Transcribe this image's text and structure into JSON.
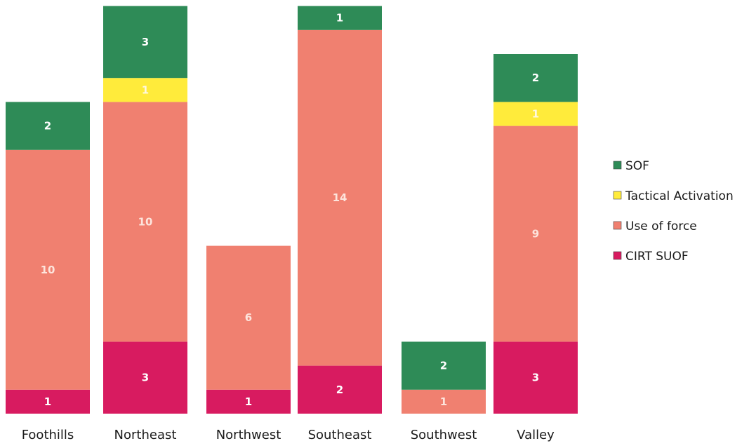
{
  "chart_data": {
    "type": "bar",
    "stacked": true,
    "title": "",
    "xlabel": "",
    "ylabel": "",
    "categories": [
      "Foothills",
      "Northeast",
      "Northwest",
      "Southeast",
      "Southwest",
      "Valley"
    ],
    "series": [
      {
        "name": "CIRT SUOF",
        "values": [
          1,
          3,
          1,
          2,
          0,
          3
        ],
        "color": "#d81b60"
      },
      {
        "name": "Use of force",
        "values": [
          10,
          10,
          6,
          14,
          1,
          9
        ],
        "color": "#f08070"
      },
      {
        "name": "Tactical Activation",
        "values": [
          0,
          1,
          0,
          0,
          0,
          1
        ],
        "color": "#ffeb3b"
      },
      {
        "name": "SOF",
        "values": [
          2,
          3,
          0,
          1,
          2,
          2
        ],
        "color": "#2e8b57"
      }
    ],
    "legend_order": [
      "SOF",
      "Tactical Activation",
      "Use of force",
      "CIRT SUOF"
    ],
    "legend_position": "right",
    "ylim": [
      0,
      17
    ],
    "grid": false,
    "data_labels": true
  }
}
